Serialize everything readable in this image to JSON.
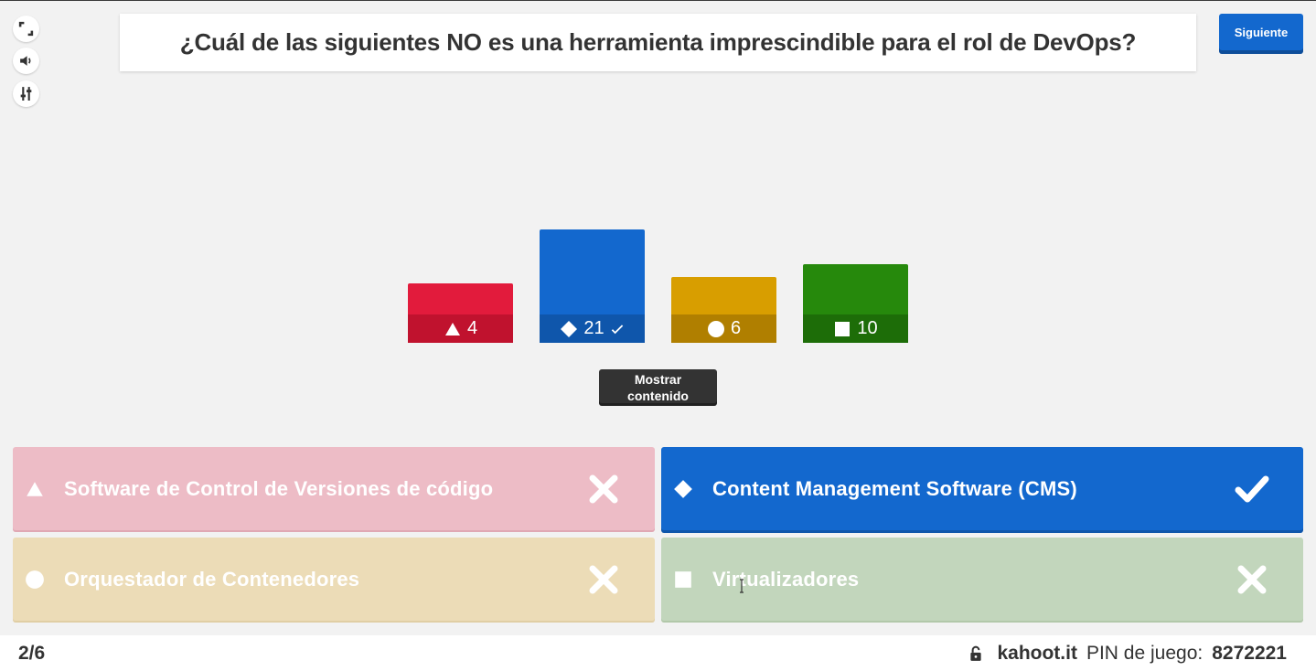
{
  "question": {
    "text": "¿Cuál de las siguientes NO es una herramienta imprescindible para el rol de DevOps?"
  },
  "controls": [
    {
      "name": "fullscreen-icon"
    },
    {
      "name": "volume-icon"
    },
    {
      "name": "settings-sliders-icon"
    }
  ],
  "next_button": {
    "label": "Siguiente"
  },
  "chart_data": {
    "type": "bar",
    "categories": [
      "triangle",
      "diamond",
      "circle",
      "square"
    ],
    "values": [
      4,
      21,
      6,
      10
    ],
    "correct_index": 1,
    "colors": [
      "#e21b3c",
      "#1368ce",
      "#d89e00",
      "#26890c"
    ]
  },
  "bar_labels": [
    "4",
    "21",
    "6",
    "10"
  ],
  "show_content_button": {
    "line1": "Mostrar",
    "line2": "contenido"
  },
  "answers": [
    {
      "text": "Software de Control de Versiones de código",
      "shape": "triangle-icon",
      "correct": false
    },
    {
      "text": "Content Management Software (CMS)",
      "shape": "diamond-icon",
      "correct": true
    },
    {
      "text": "Orquestador de Contenedores",
      "shape": "circle-icon",
      "correct": false
    },
    {
      "text": "Virtualizadores",
      "shape": "square-icon",
      "correct": false
    }
  ],
  "footer": {
    "counter": "2/6",
    "site": "kahoot.it",
    "pin_label": "PIN de juego:",
    "pin_value": "8272221"
  }
}
